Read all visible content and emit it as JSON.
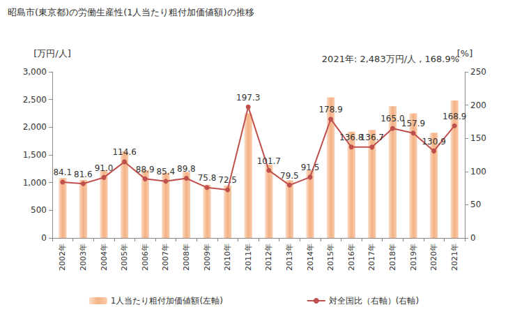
{
  "chart_data": {
    "type": "bar",
    "title": "昭島市(東京都)の労働生産性(1人当たり粗付加価値額)の推移",
    "annotation": "2021年: 2,483万円/人 , 168.9%",
    "y_label": "[万円/人]",
    "y2_label": "[%]",
    "categories": [
      "2002年",
      "2003年",
      "2004年",
      "2005年",
      "2006年",
      "2007年",
      "2008年",
      "2009年",
      "2010年",
      "2011年",
      "2012年",
      "2013年",
      "2014年",
      "2015年",
      "2016年",
      "2017年",
      "2018年",
      "2019年",
      "2020年",
      "2021年"
    ],
    "series": [
      {
        "name": "1人当たり粗付加価値額(左軸)",
        "type": "bar",
        "color": "#f4b183",
        "values": [
          1080,
          1050,
          1220,
          1560,
          1230,
          1180,
          1190,
          960,
          950,
          2250,
          1320,
          1040,
          1220,
          2540,
          1920,
          1950,
          2380,
          2250,
          1900,
          2483
        ]
      },
      {
        "name": "対全国比（右軸）(右軸)",
        "type": "line",
        "axis": "y2",
        "color": "#c0504d",
        "marker": "circle",
        "data_labels": true,
        "values": [
          84.1,
          81.6,
          91.0,
          114.6,
          88.9,
          85.4,
          89.8,
          75.8,
          72.5,
          197.3,
          101.7,
          79.5,
          91.5,
          178.9,
          136.8,
          136.7,
          165.0,
          157.9,
          130.9,
          168.9
        ],
        "value_labels": [
          "84.1",
          "81.6",
          "91.0",
          "114.6",
          "88.9",
          "85.4",
          "89.8",
          "75.8",
          "72.5",
          "197.3",
          "101.7",
          "79.5",
          "91.5",
          "178.9",
          "136.8",
          "136.7",
          "165.0",
          "157.9",
          "130.9",
          "168.9"
        ]
      }
    ],
    "ylim": [
      0,
      3000
    ],
    "yticks": [
      0,
      500,
      {
        "value": 1000,
        "label": "1,000"
      },
      {
        "value": 1500,
        "label": "1,500"
      },
      {
        "value": 2000,
        "label": "2,000"
      },
      {
        "value": 2500,
        "label": "2,500"
      },
      {
        "value": 3000,
        "label": "3,000"
      }
    ],
    "y2lim": [
      0,
      250
    ],
    "y2ticks": [
      0,
      50,
      100,
      150,
      200,
      250
    ],
    "grid": false,
    "legend": "bottom"
  }
}
